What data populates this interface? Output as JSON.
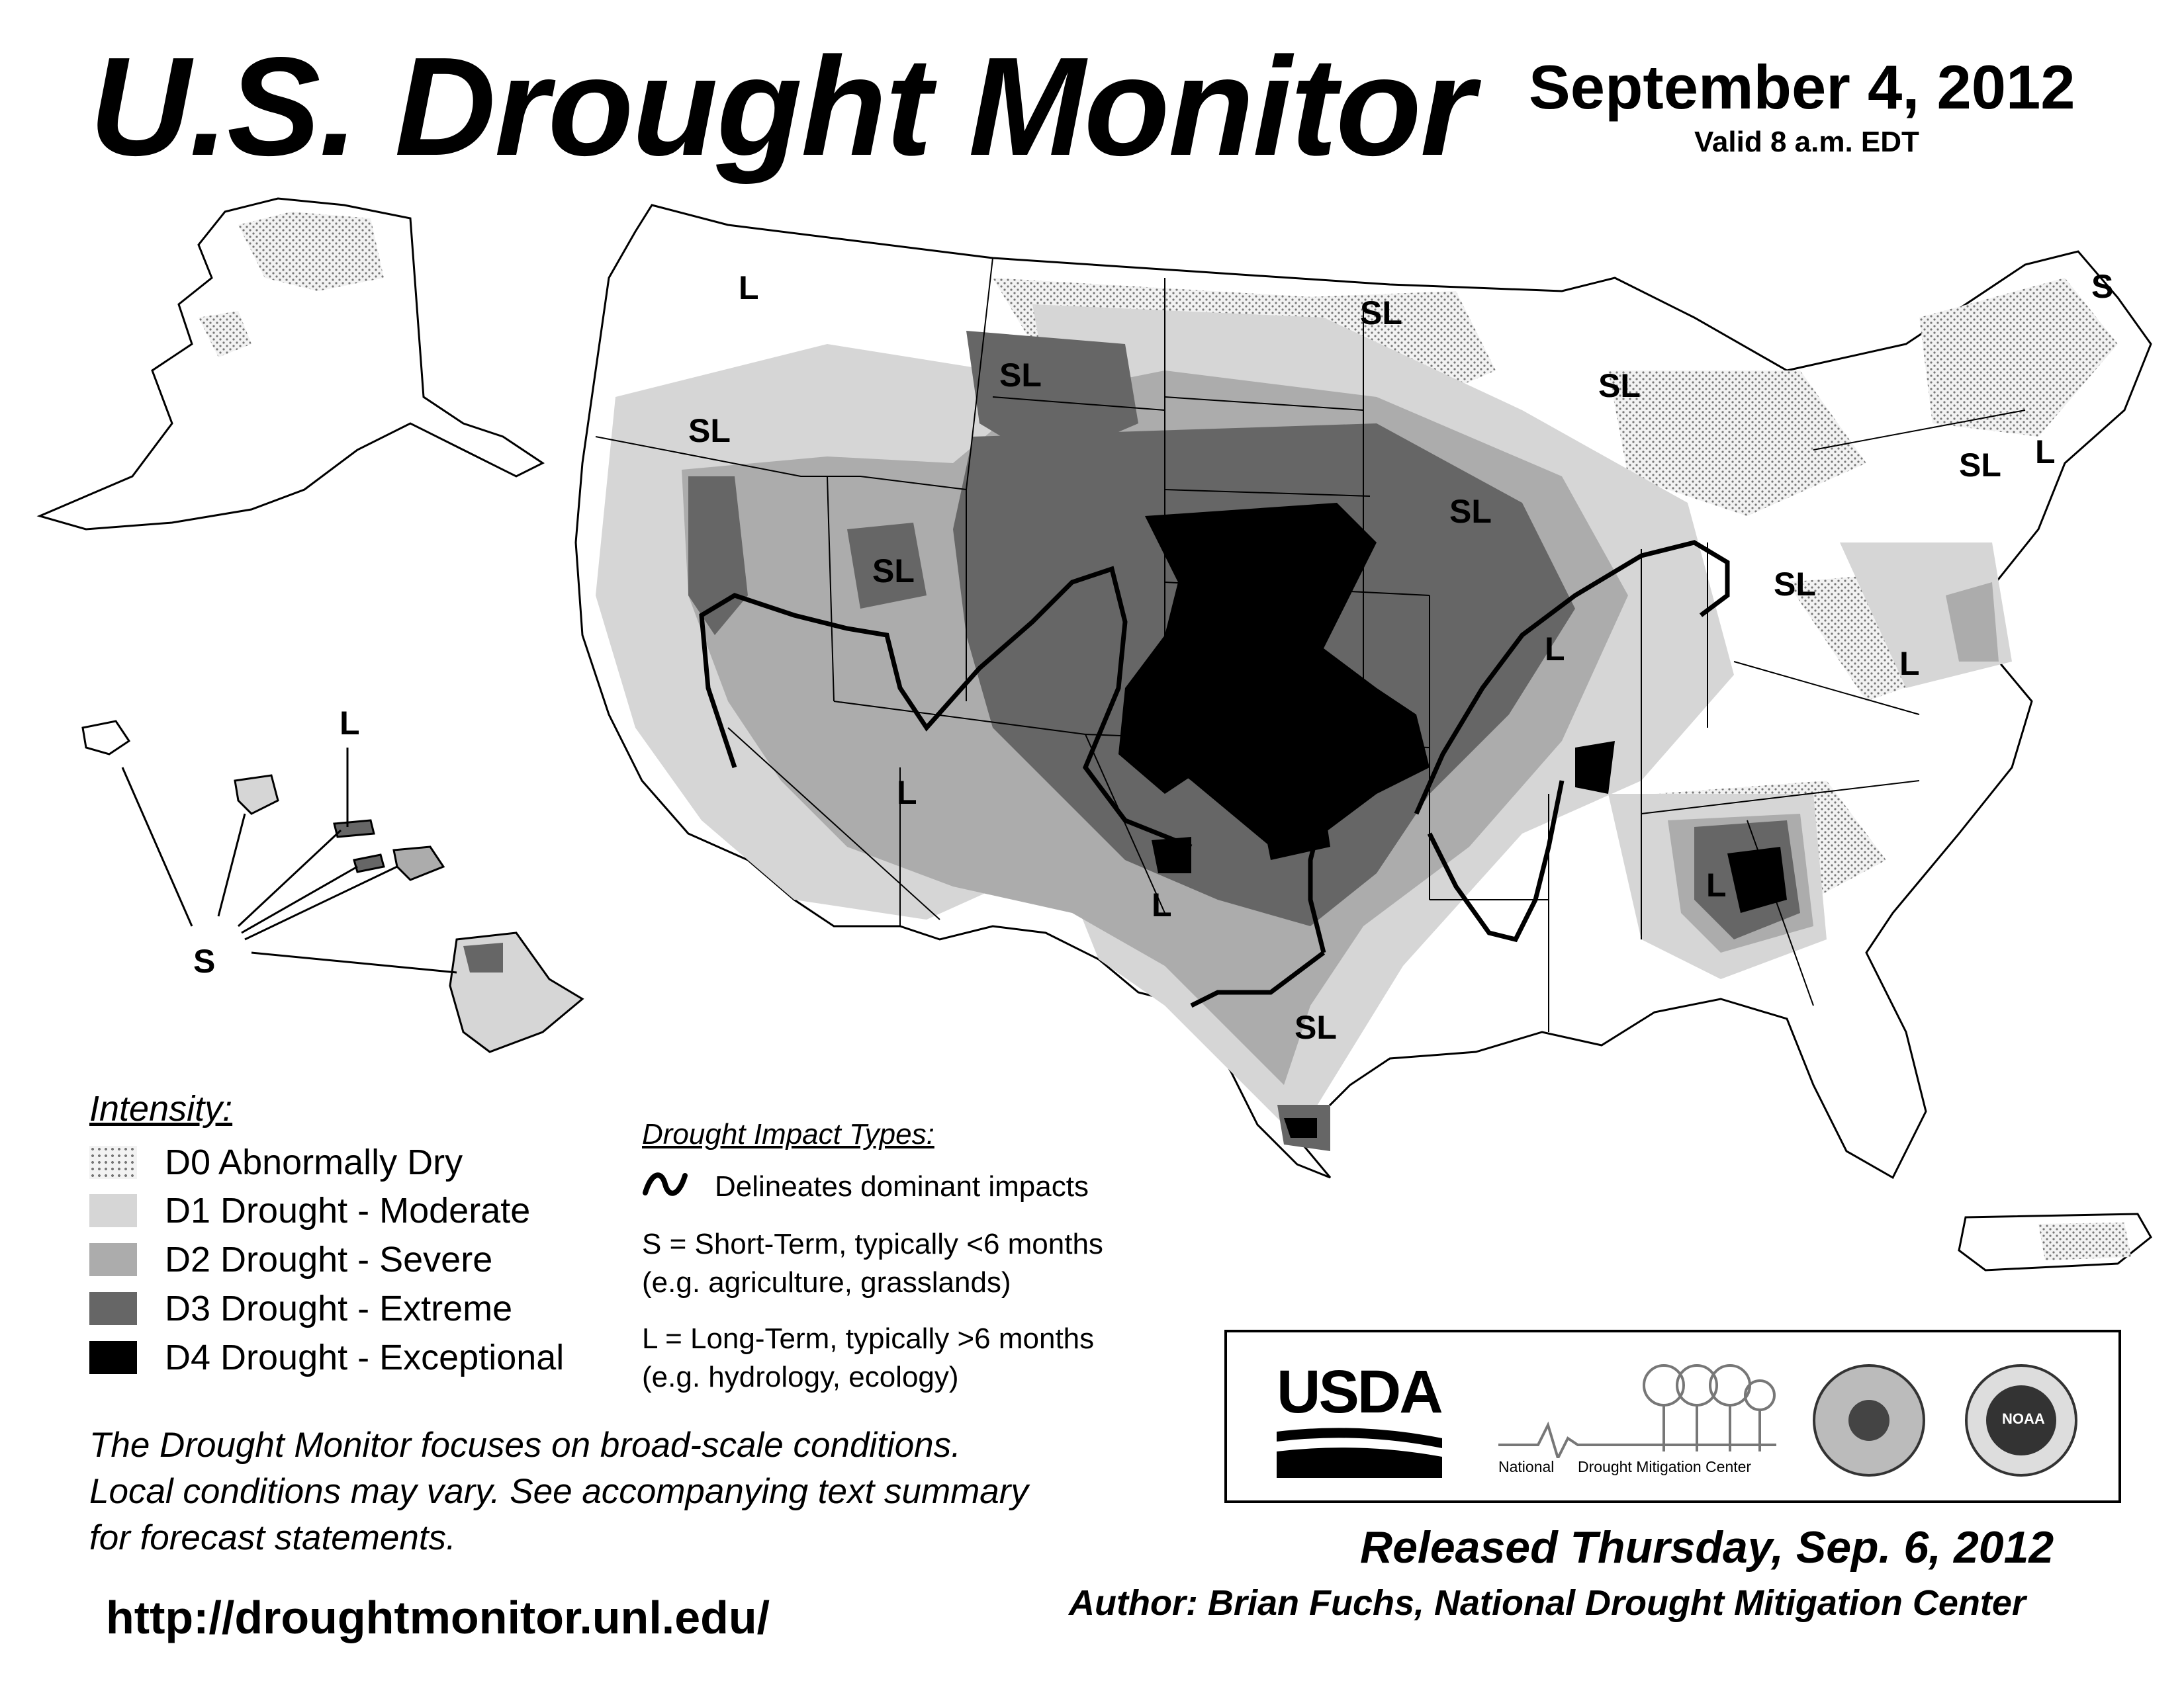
{
  "header": {
    "title": "U.S. Drought Monitor",
    "date": "September 4, 2012",
    "valid": "Valid 8 a.m. EDT"
  },
  "legend": {
    "heading": "Intensity:",
    "items": [
      {
        "code": "D0",
        "label": "D0 Abnormally Dry",
        "color": "#ececec",
        "pattern": "dotted"
      },
      {
        "code": "D1",
        "label": "D1 Drought - Moderate",
        "color": "#d6d6d6"
      },
      {
        "code": "D2",
        "label": "D2 Drought - Severe",
        "color": "#acacac"
      },
      {
        "code": "D3",
        "label": "D3 Drought - Extreme",
        "color": "#666666"
      },
      {
        "code": "D4",
        "label": "D4 Drought - Exceptional",
        "color": "#000000"
      }
    ]
  },
  "impact": {
    "heading": "Drought Impact Types:",
    "delineates": "Delineates dominant impacts",
    "short_line1": "S = Short-Term, typically <6 months",
    "short_line2": "(e.g. agriculture, grasslands)",
    "long_line1": "L = Long-Term, typically >6 months",
    "long_line2": "(e.g. hydrology, ecology)"
  },
  "map_labels": {
    "ak_l": "L",
    "nw_sl": "SL",
    "mt_sl": "SL",
    "nd_sl": "SL",
    "wi_sl": "SL",
    "me_s": "S",
    "ne_l": "L",
    "ne_sl": "SL",
    "ut_sl": "SL",
    "ia_sl": "SL",
    "oh_sl": "SL",
    "in_l": "L",
    "va_l": "L",
    "az_l": "L",
    "ok_l": "L",
    "ga_l": "L",
    "tx_sl": "SL",
    "hi_l": "L",
    "hi_s": "S"
  },
  "footer": {
    "focus_line1": "The Drought Monitor focuses on broad-scale conditions.",
    "focus_line2": "Local conditions may vary. See accompanying text summary",
    "focus_line3": "for forecast statements.",
    "url": "http://droughtmonitor.unl.edu/",
    "released": "Released Thursday, Sep. 6, 2012",
    "author": "Author: Brian Fuchs, National Drought Mitigation Center"
  },
  "logos": {
    "usda": "USDA",
    "ndmc_national": "National",
    "ndmc_center": "Drought Mitigation Center",
    "noaa": "NOAA"
  }
}
